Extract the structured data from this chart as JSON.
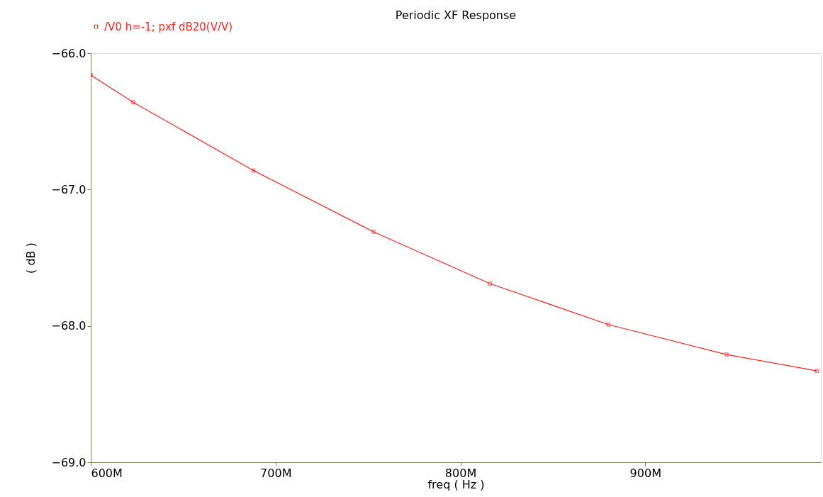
{
  "chart_data": {
    "type": "line",
    "title": "Periodic XF Response",
    "xlabel": "freq ( Hz )",
    "ylabel": "( dB )",
    "x": [
      600,
      623,
      688,
      753,
      816,
      880,
      944,
      993
    ],
    "series": [
      {
        "name": "/V0 h=-1; pxf dB20(V/V)",
        "color": "#ff2020",
        "values": [
          -66.16,
          -66.36,
          -66.86,
          -67.31,
          -67.69,
          -67.99,
          -68.21,
          -68.33
        ]
      }
    ],
    "xlim": [
      600,
      995
    ],
    "xticks": [
      {
        "value": 600,
        "label": "600M"
      },
      {
        "value": 700,
        "label": "700M"
      },
      {
        "value": 800,
        "label": "800M"
      },
      {
        "value": 900,
        "label": "900M"
      }
    ],
    "ylim": [
      -69,
      -66
    ],
    "yticks": [
      {
        "value": -69,
        "label": "−69.0"
      },
      {
        "value": -68,
        "label": "−68.0"
      },
      {
        "value": -67,
        "label": "−67.0"
      },
      {
        "value": -66,
        "label": "−66.0"
      }
    ],
    "grid": false,
    "legend": "top left",
    "marker": "square",
    "line_style": "solid"
  }
}
